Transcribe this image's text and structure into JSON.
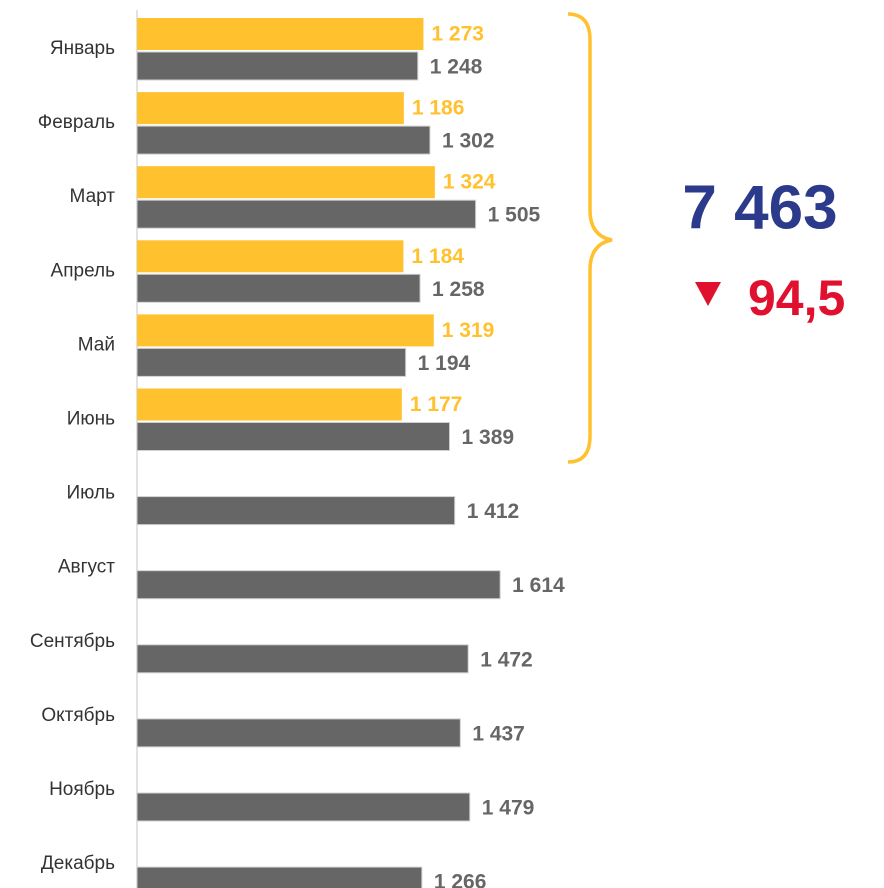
{
  "chart_data": {
    "type": "hbar",
    "categories": [
      "Январь",
      "Февраль",
      "Март",
      "Апрель",
      "Май",
      "Июнь",
      "Июль",
      "Август",
      "Сентябрь",
      "Октябрь",
      "Ноябрь",
      "Декабрь"
    ],
    "series": [
      {
        "color": "#ffc12e",
        "values": [
          1273,
          1186,
          1324,
          1184,
          1319,
          1177,
          null,
          null,
          null,
          null,
          null,
          null
        ],
        "value_labels": [
          "1 273",
          "1 186",
          "1 324",
          "1 184",
          "1 319",
          "1 177",
          null,
          null,
          null,
          null,
          null,
          null
        ]
      },
      {
        "color": "#666666",
        "values": [
          1248,
          1302,
          1505,
          1258,
          1194,
          1389,
          1412,
          1614,
          1472,
          1437,
          1479,
          1266
        ],
        "value_labels": [
          "1 248",
          "1 302",
          "1 505",
          "1 258",
          "1 194",
          "1 389",
          "1 412",
          "1 614",
          "1 472",
          "1 437",
          "1 479",
          "1 266"
        ]
      }
    ],
    "xlim": [
      0,
      2000
    ],
    "annotations": {
      "total": "7 463",
      "change": "94,5"
    }
  }
}
